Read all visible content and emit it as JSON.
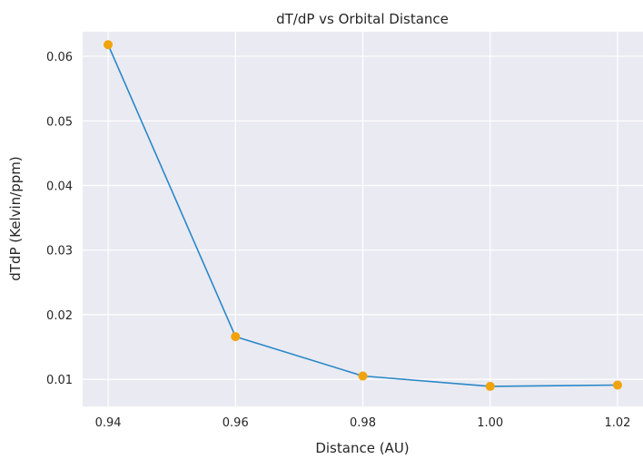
{
  "chart_data": {
    "type": "line",
    "title": "dT/dP vs Orbital Distance",
    "xlabel": "Distance (AU)",
    "ylabel": "dTdP (Kelvin/ppm)",
    "xlim": [
      0.936,
      1.024
    ],
    "ylim": [
      0.0058,
      0.0638
    ],
    "xticks": [
      0.94,
      0.96,
      0.98,
      1.0,
      1.02
    ],
    "xtick_labels": [
      "0.94",
      "0.96",
      "0.98",
      "1.00",
      "1.02"
    ],
    "yticks": [
      0.01,
      0.02,
      0.03,
      0.04,
      0.05,
      0.06
    ],
    "ytick_labels": [
      "0.01",
      "0.02",
      "0.03",
      "0.04",
      "0.05",
      "0.06"
    ],
    "grid": true,
    "series": [
      {
        "x": [
          0.94,
          0.96,
          0.98,
          1.0,
          1.02
        ],
        "y": [
          0.0618,
          0.0166,
          0.0105,
          0.0089,
          0.0091
        ]
      }
    ],
    "colors": {
      "line": "#2a88c8",
      "marker": "#f0a30a",
      "plot_bg": "#eaeaf2",
      "grid": "#ffffff"
    }
  }
}
